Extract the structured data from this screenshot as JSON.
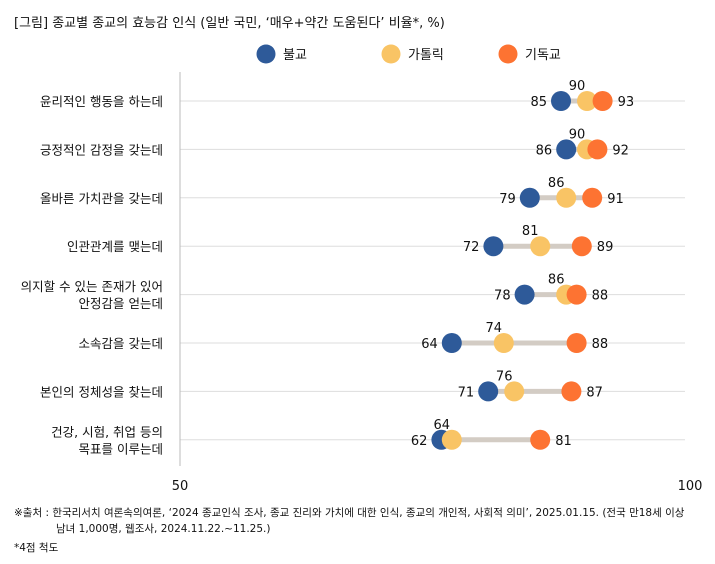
{
  "chart_data": {
    "type": "dot",
    "title": "[그림] 종교별 종교의 효능감 인식 (일반 국민, ‘매우+약간 도움된다’ 비율*, %)",
    "categories": [
      [
        "윤리적인 행동을 하는데"
      ],
      [
        "긍정적인 감정을 갖는데"
      ],
      [
        "올바른 가치관을 갖는데"
      ],
      [
        "인관관계를 맺는데"
      ],
      [
        "의지할 수 있는 존재가 있어",
        "안정감을 얻는데"
      ],
      [
        "소속감을 갖는데"
      ],
      [
        "본인의 정체성을 찾는데"
      ],
      [
        "건강, 시험, 취업 등의",
        "목표를 이루는데"
      ]
    ],
    "series": [
      {
        "name": "불교",
        "color": "#2e5a99",
        "values": [
          85,
          86,
          79,
          72,
          78,
          64,
          71,
          62
        ]
      },
      {
        "name": "가톨릭",
        "color": "#f9c465",
        "values": [
          90,
          90,
          86,
          81,
          86,
          74,
          76,
          64
        ]
      },
      {
        "name": "기독교",
        "color": "#fd7332",
        "values": [
          93,
          92,
          91,
          89,
          88,
          88,
          87,
          81
        ]
      }
    ],
    "xtick_labels": [
      "50",
      "100"
    ],
    "legend_position": "top",
    "grid": true
  },
  "footer": {
    "source_line1": "※출처 : 한국리서치 여론속의여론, ‘2024 종교인식 조사, 종교 진리와 가치에 대한 인식, 종교의 개인적, 사회적 의미’, 2025.01.15. (전국 만18세 이상",
    "source_line2": "남녀 1,000명, 웹조사,  2024.11.22.~11.25.)",
    "note": "*4점 척도"
  }
}
